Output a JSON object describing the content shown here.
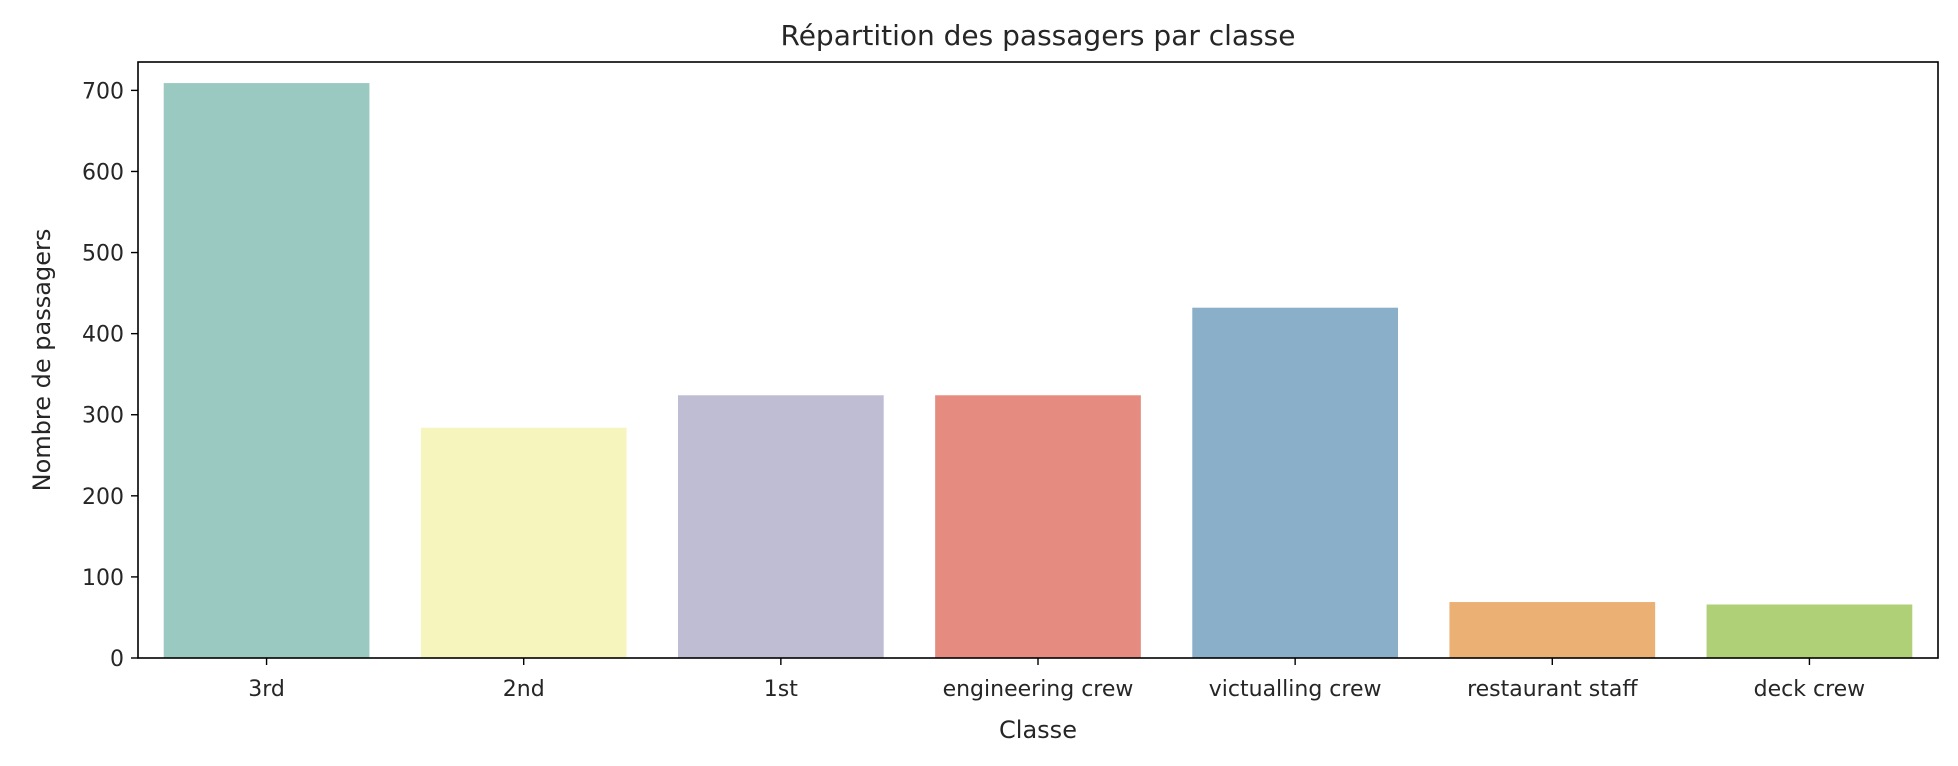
{
  "chart_data": {
    "type": "bar",
    "title": "Répartition des passagers par classe",
    "xlabel": "Classe",
    "ylabel": "Nombre de passagers",
    "categories": [
      "3rd",
      "2nd",
      "1st",
      "engineering crew",
      "victualling crew",
      "restaurant staff",
      "deck crew"
    ],
    "values": [
      709,
      284,
      324,
      324,
      432,
      69,
      66
    ],
    "colors": [
      "#99c9c1",
      "#f5f5bd",
      "#bfbdd4",
      "#e68b80",
      "#8aafc8",
      "#ebb073",
      "#b0d078"
    ],
    "ylim": [
      0,
      735
    ],
    "yticks": [
      0,
      100,
      200,
      300,
      400,
      500,
      600,
      700
    ],
    "grid": false
  }
}
